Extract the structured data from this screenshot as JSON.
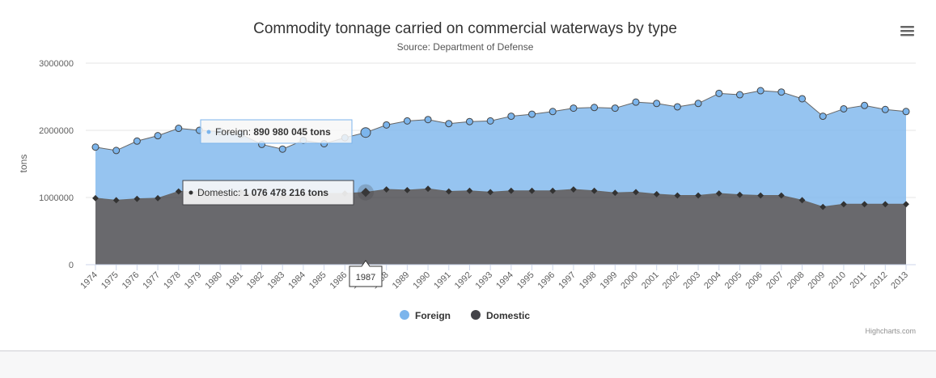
{
  "chart": {
    "title": "Commodity tonnage carried on commercial waterways by type",
    "subtitle": "Source: Department of Defense",
    "credits": "Highcharts.com",
    "menu_icon": "hamburger-menu-icon"
  },
  "chart_data": {
    "type": "area",
    "stacked": true,
    "ylabel": "tons",
    "xlabel": "",
    "ylim": [
      0,
      3000000
    ],
    "yticks": [
      "0",
      "1000000",
      "2000000",
      "3000000"
    ],
    "x": [
      1974,
      1975,
      1976,
      1977,
      1978,
      1979,
      1980,
      1981,
      1982,
      1983,
      1984,
      1985,
      1986,
      1987,
      1988,
      1989,
      1990,
      1991,
      1992,
      1993,
      1994,
      1995,
      1996,
      1997,
      1998,
      1999,
      2000,
      2001,
      2002,
      2003,
      2004,
      2005,
      2006,
      2007,
      2008,
      2009,
      2010,
      2011,
      2012,
      2013
    ],
    "series": [
      {
        "name": "Foreign",
        "color": "#7cb5ec",
        "values": [
          760000,
          740000,
          860000,
          930000,
          940000,
          910000,
          900000,
          860000,
          760000,
          700000,
          800000,
          740000,
          830000,
          890980,
          960000,
          1030000,
          1030000,
          1010000,
          1030000,
          1060000,
          1110000,
          1140000,
          1180000,
          1210000,
          1240000,
          1260000,
          1340000,
          1350000,
          1320000,
          1370000,
          1490000,
          1490000,
          1560000,
          1540000,
          1510000,
          1350000,
          1420000,
          1470000,
          1410000,
          1380000
        ]
      },
      {
        "name": "Domestic",
        "color": "#434348",
        "values": [
          990000,
          960000,
          980000,
          990000,
          1090000,
          1090000,
          1080000,
          1080000,
          1030000,
          1020000,
          1050000,
          1060000,
          1060000,
          1076478,
          1120000,
          1110000,
          1130000,
          1090000,
          1100000,
          1080000,
          1100000,
          1100000,
          1100000,
          1120000,
          1100000,
          1070000,
          1080000,
          1050000,
          1030000,
          1030000,
          1060000,
          1040000,
          1030000,
          1030000,
          960000,
          860000,
          900000,
          900000,
          900000,
          900000
        ]
      }
    ],
    "legend": "bottom-center",
    "grid": true,
    "tooltip": {
      "category": "1987",
      "foreign_label": "Foreign:",
      "foreign_value": "890 980 045 tons",
      "domestic_label": "Domestic:",
      "domestic_value": "1 076 478 216 tons"
    }
  }
}
